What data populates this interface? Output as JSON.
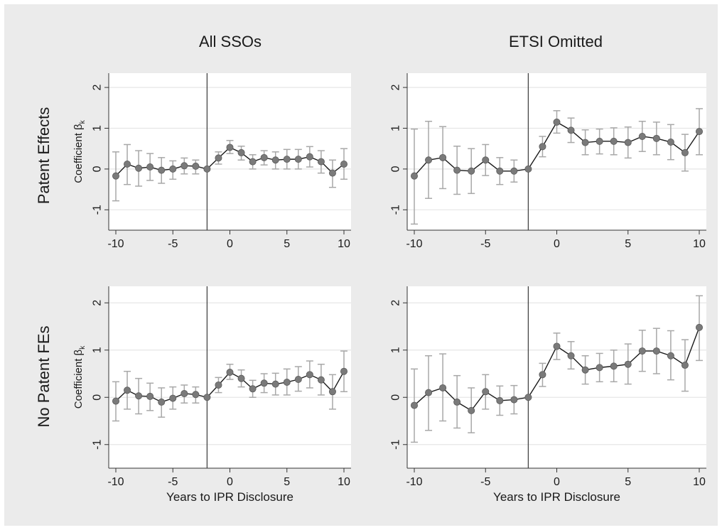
{
  "figure": {
    "col_titles": [
      "All SSOs",
      "ETSI Omitted"
    ],
    "row_titles": [
      "Patent Effects",
      "No Patent FEs"
    ]
  },
  "chart_data": [
    {
      "type": "line",
      "panel": "Patent Effects / All SSOs",
      "xlabel": "",
      "ylabel": "Coefficient β_k",
      "xlim": [
        -10,
        10
      ],
      "ylim": [
        -1.5,
        2.35
      ],
      "xticks": [
        -10,
        -5,
        0,
        5,
        10
      ],
      "yticks": [
        -1,
        0,
        1,
        2
      ],
      "event_line_x": -2,
      "grid": true,
      "x": [
        -10,
        -9,
        -8,
        -7,
        -6,
        -5,
        -4,
        -3,
        -2,
        -1,
        0,
        1,
        2,
        3,
        4,
        5,
        6,
        7,
        8,
        9,
        10
      ],
      "y": [
        -0.17,
        0.12,
        0.02,
        0.05,
        -0.03,
        0.0,
        0.08,
        0.07,
        0.0,
        0.27,
        0.53,
        0.4,
        0.18,
        0.28,
        0.22,
        0.24,
        0.24,
        0.3,
        0.18,
        -0.1,
        0.12
      ],
      "ci_low": [
        -0.78,
        -0.38,
        -0.42,
        -0.28,
        -0.35,
        -0.25,
        -0.12,
        -0.12,
        0.0,
        0.12,
        0.38,
        0.22,
        0.0,
        0.1,
        0.0,
        0.0,
        0.0,
        0.05,
        -0.1,
        -0.45,
        -0.25
      ],
      "ci_high": [
        0.42,
        0.6,
        0.45,
        0.38,
        0.28,
        0.2,
        0.27,
        0.22,
        0.0,
        0.42,
        0.7,
        0.56,
        0.35,
        0.45,
        0.42,
        0.48,
        0.48,
        0.55,
        0.45,
        0.22,
        0.5
      ]
    },
    {
      "type": "line",
      "panel": "Patent Effects / ETSI Omitted",
      "xlabel": "",
      "ylabel": "",
      "xlim": [
        -10,
        10
      ],
      "ylim": [
        -1.5,
        2.35
      ],
      "xticks": [
        -10,
        -5,
        0,
        5,
        10
      ],
      "yticks": [
        -1,
        0,
        1,
        2
      ],
      "event_line_x": -2,
      "grid": true,
      "x": [
        -10,
        -9,
        -8,
        -7,
        -6,
        -5,
        -4,
        -3,
        -2,
        -1,
        0,
        1,
        2,
        3,
        4,
        5,
        6,
        7,
        8,
        9,
        10
      ],
      "y": [
        -0.17,
        0.22,
        0.28,
        -0.03,
        -0.05,
        0.22,
        -0.05,
        -0.05,
        0.0,
        0.55,
        1.15,
        0.95,
        0.65,
        0.68,
        0.68,
        0.65,
        0.8,
        0.75,
        0.66,
        0.4,
        0.92
      ],
      "ci_low": [
        -1.35,
        -0.72,
        -0.48,
        -0.62,
        -0.6,
        -0.16,
        -0.38,
        -0.32,
        0.0,
        0.3,
        0.88,
        0.65,
        0.35,
        0.37,
        0.35,
        0.27,
        0.43,
        0.35,
        0.23,
        -0.05,
        0.35
      ],
      "ci_high": [
        0.98,
        1.17,
        1.04,
        0.56,
        0.5,
        0.6,
        0.28,
        0.22,
        0.0,
        0.8,
        1.43,
        1.25,
        0.96,
        0.98,
        1.01,
        1.03,
        1.17,
        1.15,
        1.09,
        0.85,
        1.48
      ]
    },
    {
      "type": "line",
      "panel": "No Patent FEs / All SSOs",
      "xlabel": "Years to IPR Disclosure",
      "ylabel": "Coefficient β_k",
      "xlim": [
        -10,
        10
      ],
      "ylim": [
        -1.5,
        2.35
      ],
      "xticks": [
        -10,
        -5,
        0,
        5,
        10
      ],
      "yticks": [
        -1,
        0,
        1,
        2
      ],
      "event_line_x": -2,
      "grid": true,
      "x": [
        -10,
        -9,
        -8,
        -7,
        -6,
        -5,
        -4,
        -3,
        -2,
        -1,
        0,
        1,
        2,
        3,
        4,
        5,
        6,
        7,
        8,
        9,
        10
      ],
      "y": [
        -0.08,
        0.15,
        0.03,
        0.02,
        -0.1,
        -0.02,
        0.08,
        0.06,
        0.0,
        0.26,
        0.53,
        0.4,
        0.18,
        0.3,
        0.28,
        0.32,
        0.38,
        0.48,
        0.37,
        0.12,
        0.55
      ],
      "ci_low": [
        -0.5,
        -0.25,
        -0.35,
        -0.28,
        -0.42,
        -0.25,
        -0.12,
        -0.12,
        0.0,
        0.1,
        0.38,
        0.22,
        0.0,
        0.1,
        0.05,
        0.05,
        0.13,
        0.2,
        0.05,
        -0.25,
        0.12
      ],
      "ci_high": [
        0.33,
        0.55,
        0.4,
        0.3,
        0.2,
        0.22,
        0.26,
        0.22,
        0.0,
        0.42,
        0.7,
        0.58,
        0.36,
        0.5,
        0.51,
        0.6,
        0.65,
        0.77,
        0.7,
        0.48,
        0.98
      ]
    },
    {
      "type": "line",
      "panel": "No Patent FEs / ETSI Omitted",
      "xlabel": "Years to IPR Disclosure",
      "ylabel": "",
      "xlim": [
        -10,
        10
      ],
      "ylim": [
        -1.5,
        2.35
      ],
      "xticks": [
        -10,
        -5,
        0,
        5,
        10
      ],
      "yticks": [
        -1,
        0,
        1,
        2
      ],
      "event_line_x": -2,
      "grid": true,
      "x": [
        -10,
        -9,
        -8,
        -7,
        -6,
        -5,
        -4,
        -3,
        -2,
        -1,
        0,
        1,
        2,
        3,
        4,
        5,
        6,
        7,
        8,
        9,
        10
      ],
      "y": [
        -0.17,
        0.1,
        0.2,
        -0.1,
        -0.28,
        0.12,
        -0.07,
        -0.05,
        0.0,
        0.48,
        1.08,
        0.88,
        0.58,
        0.63,
        0.66,
        0.7,
        0.98,
        0.98,
        0.88,
        0.68,
        1.48
      ],
      "ci_low": [
        -0.95,
        -0.7,
        -0.5,
        -0.65,
        -0.75,
        -0.25,
        -0.38,
        -0.35,
        0.0,
        0.23,
        0.8,
        0.6,
        0.28,
        0.33,
        0.33,
        0.28,
        0.55,
        0.5,
        0.37,
        0.13,
        0.78
      ],
      "ci_high": [
        0.6,
        0.88,
        0.92,
        0.46,
        0.2,
        0.48,
        0.24,
        0.25,
        0.0,
        0.72,
        1.36,
        1.18,
        0.88,
        0.93,
        1.0,
        1.13,
        1.42,
        1.46,
        1.41,
        1.22,
        2.15
      ]
    }
  ]
}
